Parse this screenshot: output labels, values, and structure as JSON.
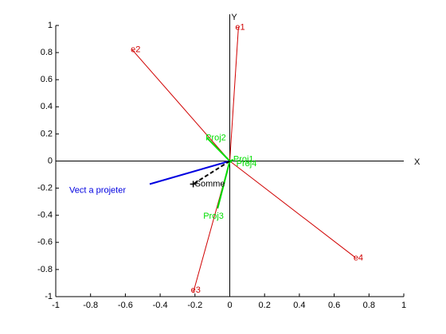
{
  "chart_data": {
    "type": "line",
    "xlabel": "X",
    "ylabel": "Y",
    "xlim": [
      -1,
      1
    ],
    "ylim": [
      -1,
      1
    ],
    "xticks": [
      -1,
      -0.8,
      -0.6,
      -0.4,
      -0.2,
      0,
      0.2,
      0.4,
      0.6,
      0.8,
      1
    ],
    "yticks": [
      -1,
      -0.8,
      -0.6,
      -0.4,
      -0.2,
      0,
      0.2,
      0.4,
      0.6,
      0.8,
      1
    ],
    "series": [
      {
        "name": "e1",
        "color": "#d00000",
        "x": [
          0,
          0.05
        ],
        "values": [
          0,
          0.99
        ]
      },
      {
        "name": "e2",
        "color": "#d00000",
        "x": [
          0,
          -0.56
        ],
        "values": [
          0,
          0.82
        ]
      },
      {
        "name": "e3",
        "color": "#d00000",
        "x": [
          0,
          -0.21
        ],
        "values": [
          0,
          -0.97
        ]
      },
      {
        "name": "e4",
        "color": "#d00000",
        "x": [
          0,
          0.72
        ],
        "values": [
          0,
          -0.71
        ]
      },
      {
        "name": "Vect a projeter",
        "color": "#0000e0",
        "x": [
          0,
          -0.46
        ],
        "values": [
          0,
          -0.17
        ]
      },
      {
        "name": "Proj1",
        "color": "#00dd00",
        "x": [
          0,
          0.02
        ],
        "values": [
          0,
          0.01
        ]
      },
      {
        "name": "Proj2",
        "color": "#00dd00",
        "x": [
          0,
          -0.13
        ],
        "values": [
          0,
          0.17
        ]
      },
      {
        "name": "Proj3",
        "color": "#00dd00",
        "x": [
          0,
          -0.07
        ],
        "values": [
          0,
          -0.35
        ]
      },
      {
        "name": "Proj4",
        "color": "#00dd00",
        "x": [
          0,
          0.01
        ],
        "values": [
          0,
          -0.01
        ]
      },
      {
        "name": "Somme",
        "color": "#000000",
        "x": [
          0,
          -0.21
        ],
        "values": [
          0,
          -0.17
        ],
        "dashed": true,
        "marker": "+"
      }
    ]
  }
}
